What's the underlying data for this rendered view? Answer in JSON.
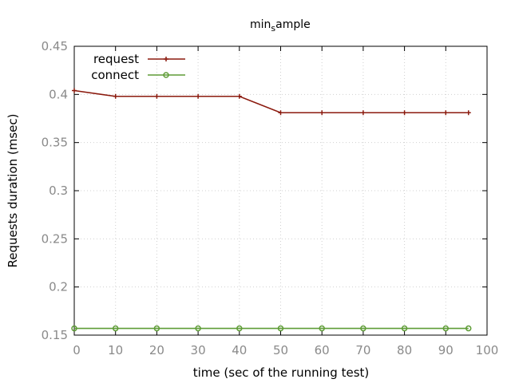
{
  "chart_data": {
    "type": "line",
    "title_main": "min",
    "title_sub": "s",
    "title_rest": "ample",
    "xlabel": "time (sec of the running test)",
    "ylabel": "Requests duration (msec)",
    "xlim": [
      0,
      100
    ],
    "ylim": [
      0.15,
      0.45
    ],
    "x_ticks": [
      0,
      10,
      20,
      30,
      40,
      50,
      60,
      70,
      80,
      90,
      100
    ],
    "y_ticks": [
      0.15,
      0.2,
      0.25,
      0.3,
      0.35,
      0.4,
      0.45
    ],
    "x_tick_labels": [
      "0",
      "10",
      "20",
      "30",
      "40",
      "50",
      "60",
      "70",
      "80",
      "90",
      "100"
    ],
    "y_tick_labels": [
      "0.15",
      "0.2",
      "0.25",
      "0.3",
      "0.35",
      "0.4",
      "0.45"
    ],
    "grid": true,
    "legend_position": "top-left",
    "series": [
      {
        "name": "request",
        "color": "#8b1a0e",
        "marker": "plus",
        "x": [
          0,
          10,
          20,
          30,
          40,
          50,
          60,
          70,
          80,
          90,
          95.5
        ],
        "y": [
          0.404,
          0.398,
          0.398,
          0.398,
          0.398,
          0.381,
          0.381,
          0.381,
          0.381,
          0.381,
          0.381
        ]
      },
      {
        "name": "connect",
        "color": "#5e9c36",
        "marker": "circle",
        "x": [
          0,
          10,
          20,
          30,
          40,
          50,
          60,
          70,
          80,
          90,
          95.5
        ],
        "y": [
          0.157,
          0.157,
          0.157,
          0.157,
          0.157,
          0.157,
          0.157,
          0.157,
          0.157,
          0.157,
          0.157
        ]
      }
    ]
  }
}
